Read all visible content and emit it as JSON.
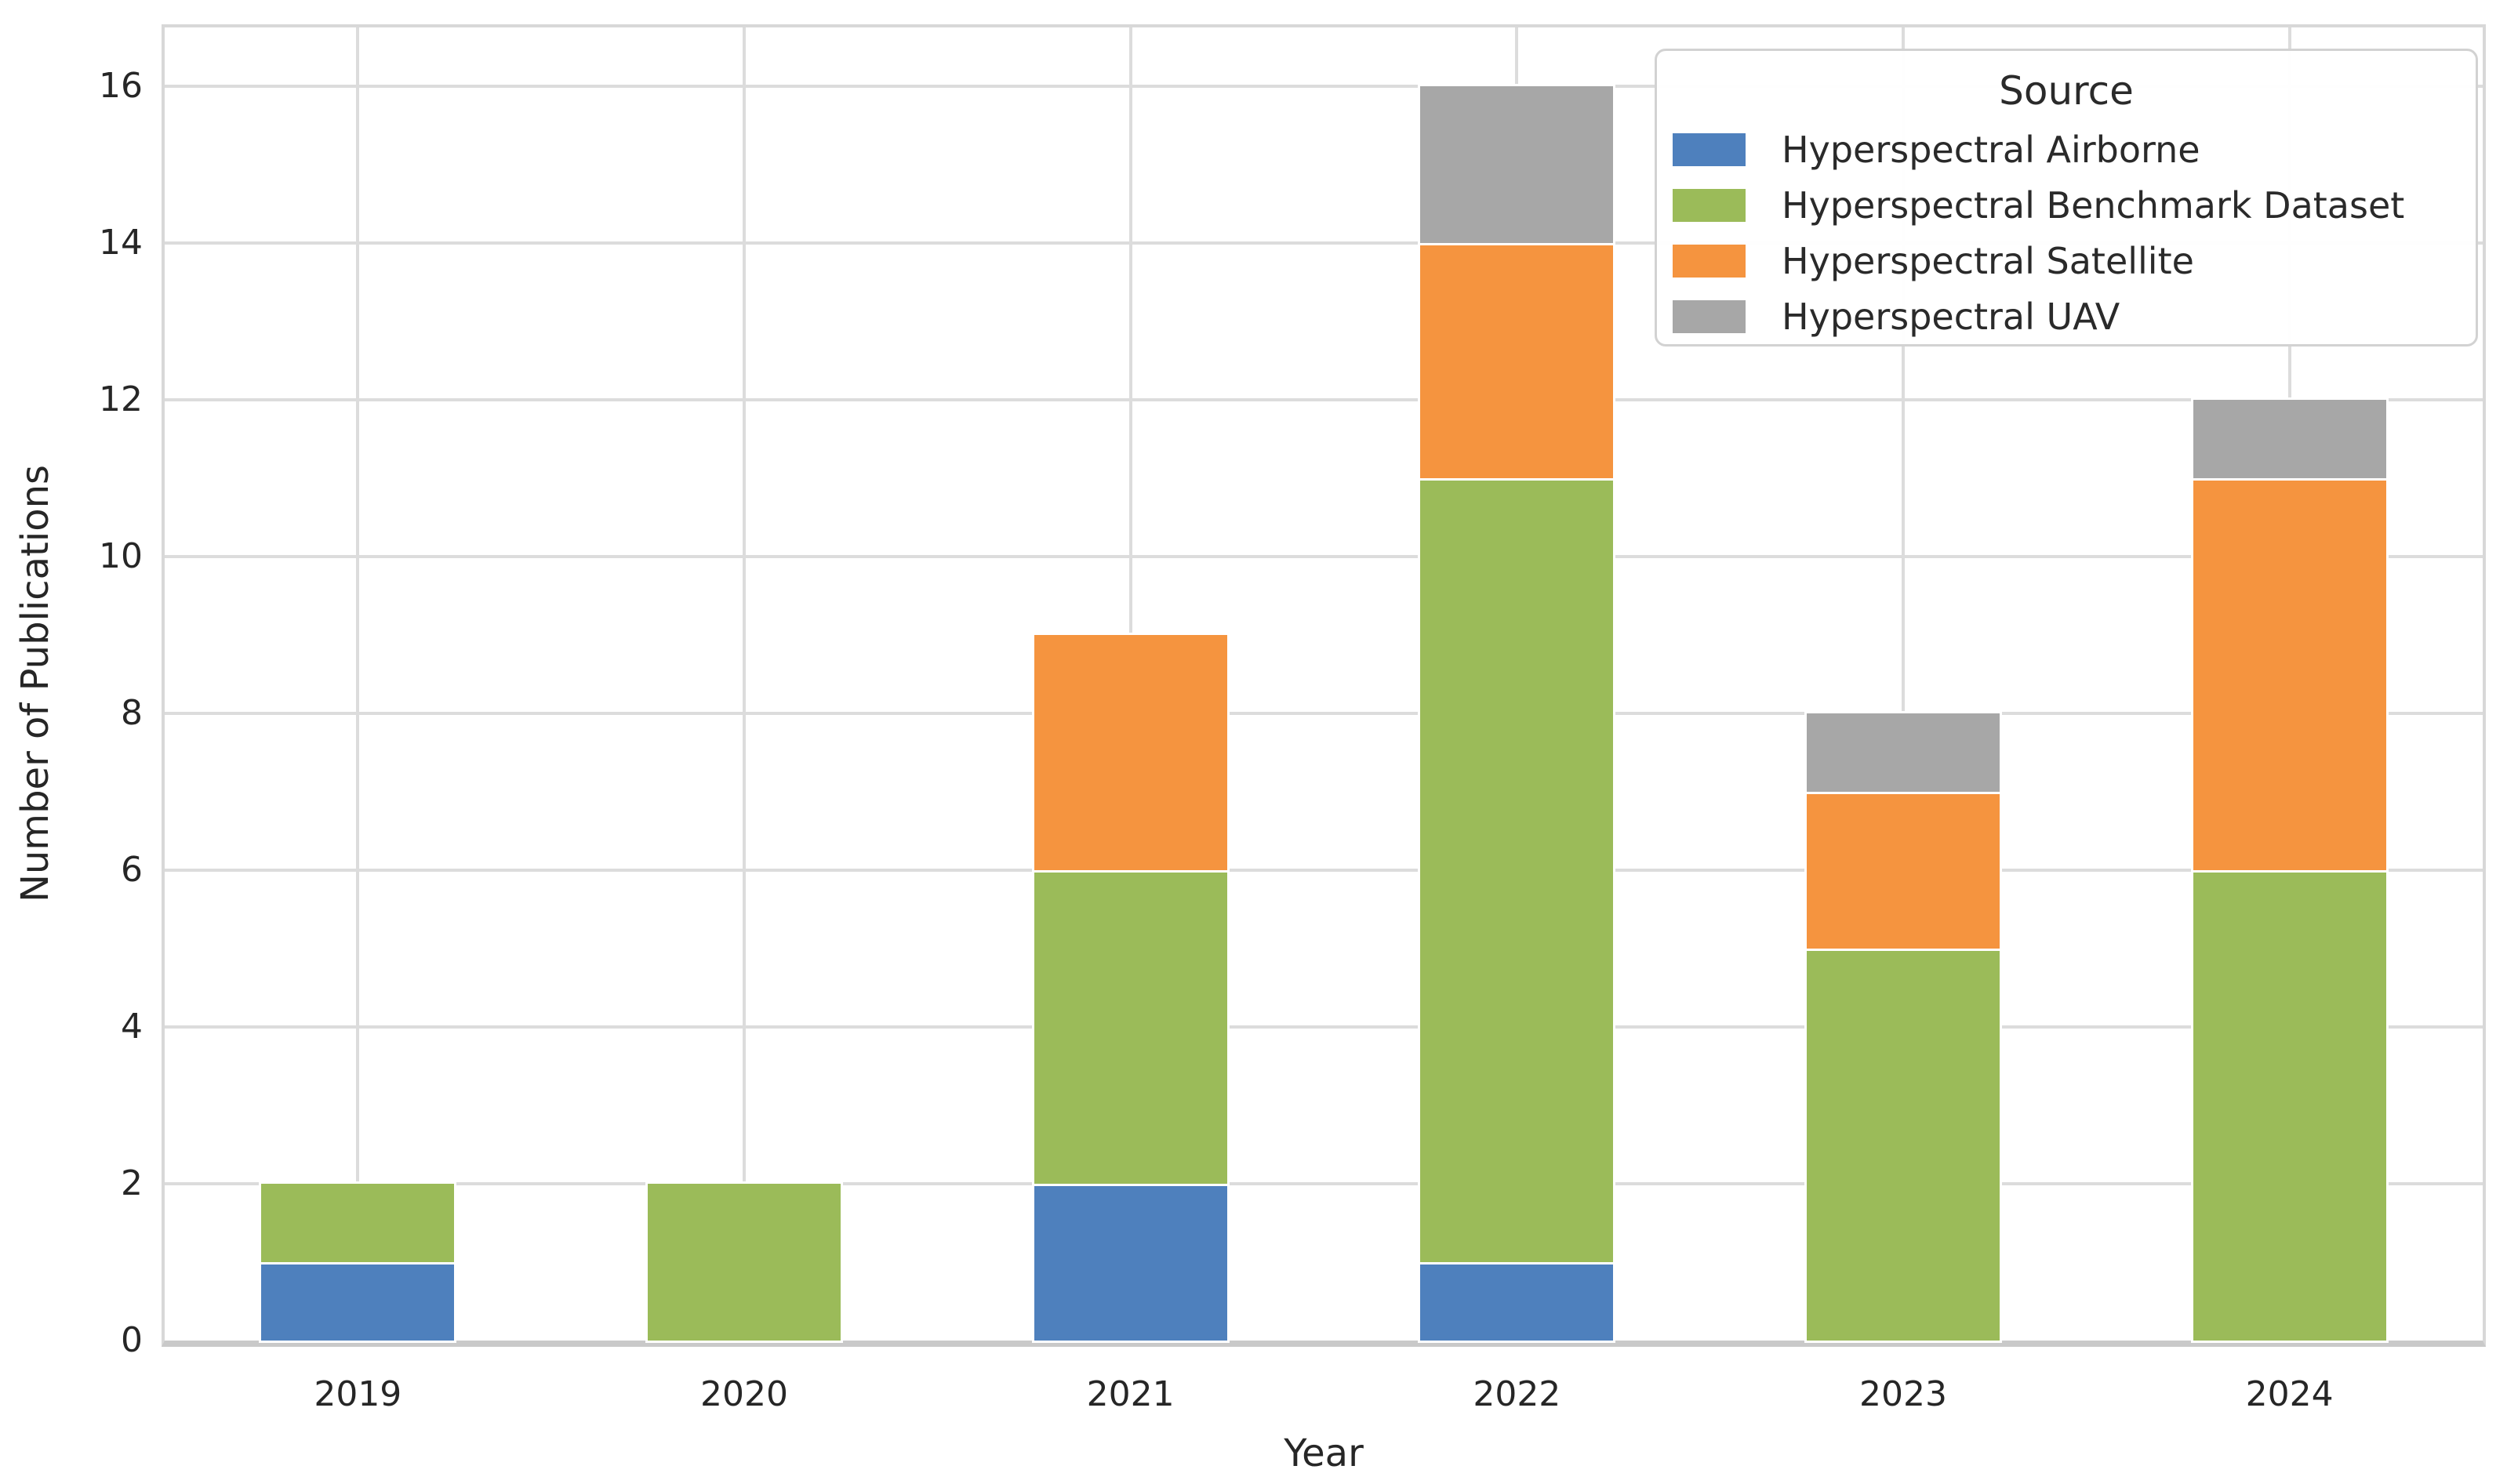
{
  "axes": {
    "ylabel": "Number of Publications",
    "xlabel": "Year",
    "yticks": [
      0,
      2,
      4,
      6,
      8,
      10,
      12,
      14,
      16
    ]
  },
  "legend": {
    "title": "Source"
  },
  "colors": {
    "airborne_blue": "#4e80bd",
    "benchmark_green": "#9bbb59",
    "satellite_orange": "#f5943f",
    "uav_gray": "#a7a7a7",
    "grid": "#dcdcdc",
    "text": "#262626"
  },
  "chart_data": {
    "type": "bar",
    "stacked": true,
    "title": "",
    "xlabel": "Year",
    "ylabel": "Number of Publications",
    "categories": [
      "2019",
      "2020",
      "2021",
      "2022",
      "2023",
      "2024"
    ],
    "series": [
      {
        "name": "Hyperspectral Airborne",
        "color": "#4e80bd",
        "values": [
          1,
          0,
          2,
          1,
          0,
          0
        ]
      },
      {
        "name": "Hyperspectral Benchmark Dataset",
        "color": "#9bbb59",
        "values": [
          1,
          2,
          4,
          10,
          5,
          6
        ]
      },
      {
        "name": "Hyperspectral Satellite",
        "color": "#f5943f",
        "values": [
          0,
          0,
          3,
          3,
          2,
          5
        ]
      },
      {
        "name": "Hyperspectral UAV",
        "color": "#a7a7a7",
        "values": [
          0,
          0,
          0,
          2,
          1,
          1
        ]
      }
    ],
    "totals": [
      2,
      2,
      9,
      16,
      8,
      12
    ],
    "ylim": [
      0,
      16.75
    ],
    "yticks": [
      0,
      2,
      4,
      6,
      8,
      10,
      12,
      14,
      16
    ],
    "grid": true,
    "bar_width_fraction": 0.5,
    "legend_title": "Source",
    "legend_position": "upper right"
  }
}
